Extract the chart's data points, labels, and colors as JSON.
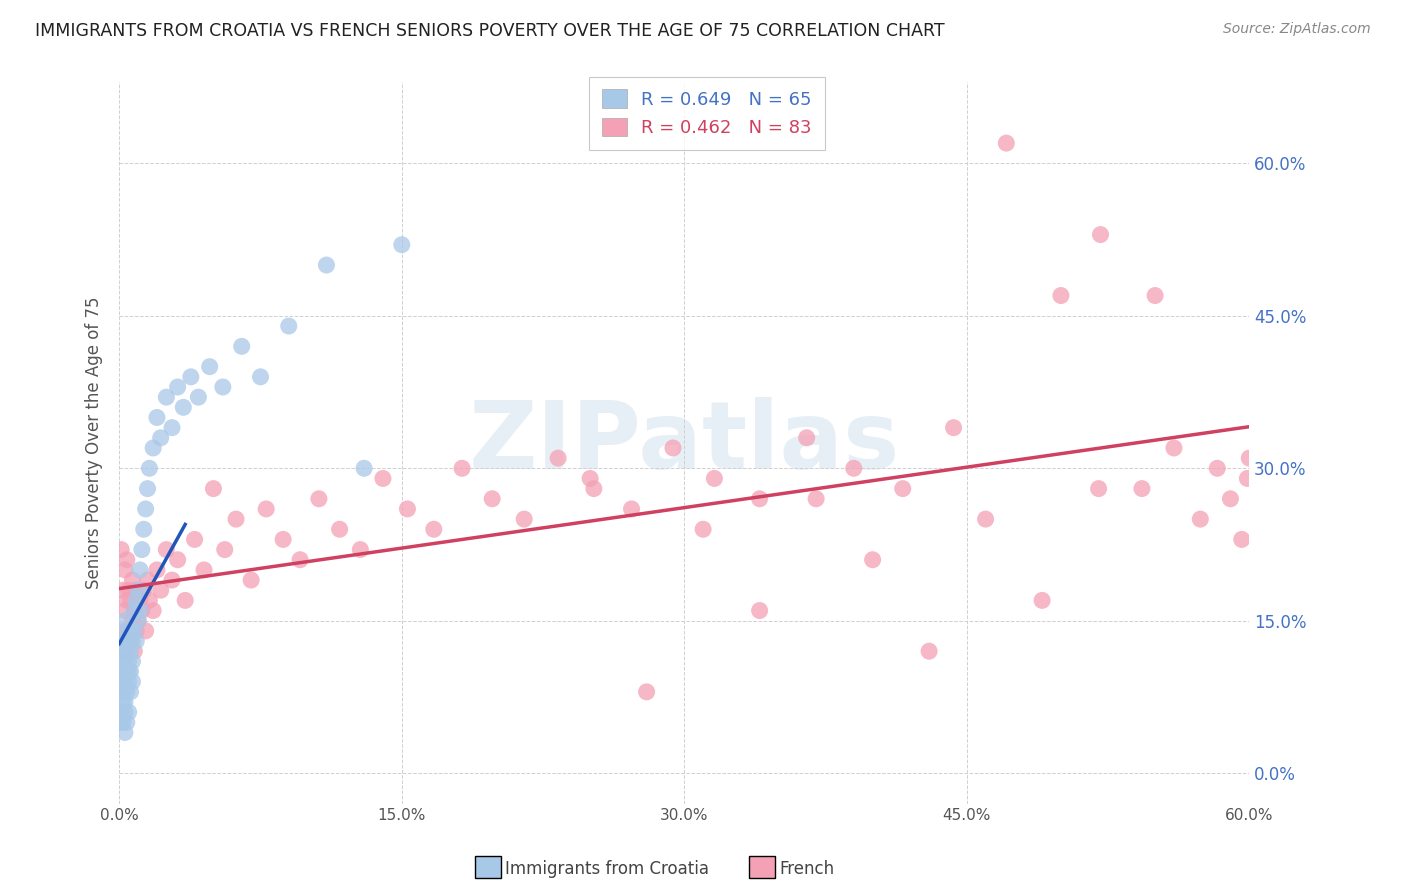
{
  "title": "IMMIGRANTS FROM CROATIA VS FRENCH SENIORS POVERTY OVER THE AGE OF 75 CORRELATION CHART",
  "source": "Source: ZipAtlas.com",
  "ylabel": "Seniors Poverty Over the Age of 75",
  "xlim": [
    0.0,
    0.6
  ],
  "ylim": [
    -0.03,
    0.68
  ],
  "yticks": [
    0.0,
    0.15,
    0.3,
    0.45,
    0.6
  ],
  "xticks": [
    0.0,
    0.15,
    0.3,
    0.45,
    0.6
  ],
  "right_y_color": "#4472C4",
  "legend_r_blue": "R = 0.649",
  "legend_n_blue": "N = 65",
  "legend_r_pink": "R = 0.462",
  "legend_n_pink": "N = 83",
  "legend_label_blue": "Immigrants from Croatia",
  "legend_label_pink": "French",
  "watermark_text": "ZIPatlas",
  "blue_dot_color": "#a8c8e8",
  "pink_dot_color": "#f4a0b5",
  "blue_line_color": "#2255bb",
  "pink_line_color": "#d04060",
  "bg_color": "#ffffff",
  "grid_color": "#d0d0d0",
  "blue_x": [
    0.001,
    0.001,
    0.001,
    0.001,
    0.001,
    0.002,
    0.002,
    0.002,
    0.002,
    0.002,
    0.002,
    0.003,
    0.003,
    0.003,
    0.003,
    0.003,
    0.003,
    0.003,
    0.004,
    0.004,
    0.004,
    0.004,
    0.004,
    0.005,
    0.005,
    0.005,
    0.005,
    0.005,
    0.006,
    0.006,
    0.006,
    0.006,
    0.007,
    0.007,
    0.007,
    0.008,
    0.008,
    0.009,
    0.009,
    0.01,
    0.01,
    0.011,
    0.011,
    0.012,
    0.013,
    0.014,
    0.015,
    0.016,
    0.018,
    0.02,
    0.022,
    0.025,
    0.028,
    0.031,
    0.034,
    0.038,
    0.042,
    0.048,
    0.055,
    0.065,
    0.075,
    0.09,
    0.11,
    0.13,
    0.15
  ],
  "blue_y": [
    0.06,
    0.08,
    0.1,
    0.12,
    0.05,
    0.07,
    0.09,
    0.11,
    0.13,
    0.05,
    0.08,
    0.06,
    0.09,
    0.11,
    0.13,
    0.15,
    0.04,
    0.07,
    0.08,
    0.1,
    0.12,
    0.14,
    0.05,
    0.09,
    0.11,
    0.13,
    0.06,
    0.1,
    0.1,
    0.12,
    0.08,
    0.14,
    0.11,
    0.13,
    0.09,
    0.14,
    0.16,
    0.13,
    0.17,
    0.15,
    0.18,
    0.16,
    0.2,
    0.22,
    0.24,
    0.26,
    0.28,
    0.3,
    0.32,
    0.35,
    0.33,
    0.37,
    0.34,
    0.38,
    0.36,
    0.39,
    0.37,
    0.4,
    0.38,
    0.42,
    0.39,
    0.44,
    0.5,
    0.3,
    0.52
  ],
  "pink_x": [
    0.001,
    0.002,
    0.002,
    0.003,
    0.003,
    0.003,
    0.004,
    0.004,
    0.004,
    0.005,
    0.005,
    0.006,
    0.006,
    0.007,
    0.007,
    0.008,
    0.008,
    0.009,
    0.009,
    0.01,
    0.011,
    0.012,
    0.013,
    0.014,
    0.015,
    0.016,
    0.018,
    0.02,
    0.022,
    0.025,
    0.028,
    0.031,
    0.035,
    0.04,
    0.045,
    0.05,
    0.056,
    0.062,
    0.07,
    0.078,
    0.087,
    0.096,
    0.106,
    0.117,
    0.128,
    0.14,
    0.153,
    0.167,
    0.182,
    0.198,
    0.215,
    0.233,
    0.252,
    0.272,
    0.294,
    0.316,
    0.34,
    0.365,
    0.39,
    0.416,
    0.443,
    0.471,
    0.5,
    0.521,
    0.543,
    0.56,
    0.574,
    0.583,
    0.59,
    0.596,
    0.599,
    0.6,
    0.55,
    0.52,
    0.49,
    0.46,
    0.43,
    0.4,
    0.37,
    0.34,
    0.31,
    0.28,
    0.25
  ],
  "pink_y": [
    0.22,
    0.14,
    0.18,
    0.12,
    0.16,
    0.2,
    0.13,
    0.17,
    0.21,
    0.14,
    0.18,
    0.13,
    0.17,
    0.15,
    0.19,
    0.12,
    0.16,
    0.14,
    0.18,
    0.15,
    0.17,
    0.16,
    0.18,
    0.14,
    0.19,
    0.17,
    0.16,
    0.2,
    0.18,
    0.22,
    0.19,
    0.21,
    0.17,
    0.23,
    0.2,
    0.28,
    0.22,
    0.25,
    0.19,
    0.26,
    0.23,
    0.21,
    0.27,
    0.24,
    0.22,
    0.29,
    0.26,
    0.24,
    0.3,
    0.27,
    0.25,
    0.31,
    0.28,
    0.26,
    0.32,
    0.29,
    0.27,
    0.33,
    0.3,
    0.28,
    0.34,
    0.62,
    0.47,
    0.53,
    0.28,
    0.32,
    0.25,
    0.3,
    0.27,
    0.23,
    0.29,
    0.31,
    0.47,
    0.28,
    0.17,
    0.25,
    0.12,
    0.21,
    0.27,
    0.16,
    0.24,
    0.08,
    0.29
  ],
  "blue_line_x0": 0.0,
  "blue_line_x1": 0.028,
  "pink_line_x0": 0.0,
  "pink_line_x1": 0.6,
  "blue_line_slope": 18.0,
  "blue_line_intercept": 0.09,
  "pink_line_slope": 0.35,
  "pink_line_intercept": 0.135
}
